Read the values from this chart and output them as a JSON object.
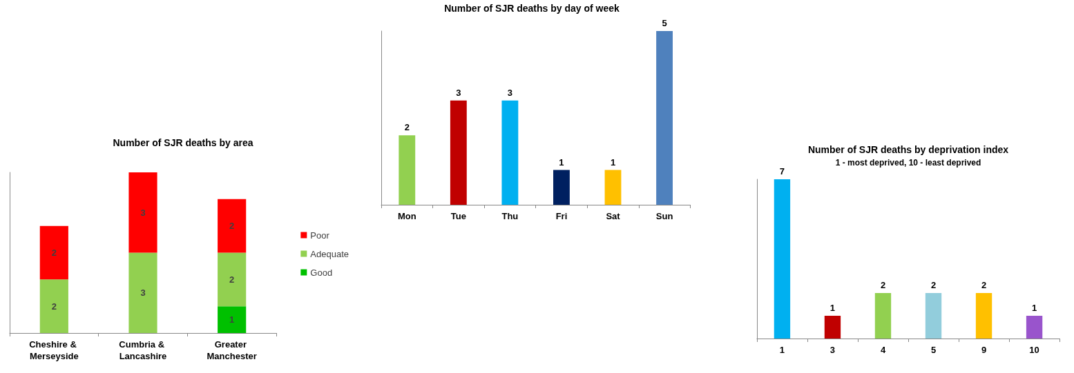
{
  "chart_data": [
    {
      "type": "bar",
      "title": "Number of SJR deaths by area",
      "categories": [
        "Cheshire & Merseyside",
        "Cumbria & Lancashire",
        "Greater Manchester"
      ],
      "stacked": true,
      "data_labels": true,
      "legend": "right",
      "grid": false,
      "series": [
        {
          "name": "Good",
          "color": "#00c000",
          "values": [
            null,
            null,
            1
          ]
        },
        {
          "name": "Adequate",
          "color": "#92d050",
          "values": [
            2,
            3,
            2
          ]
        },
        {
          "name": "Poor",
          "color": "#ff0000",
          "values": [
            2,
            3,
            2
          ]
        }
      ]
    },
    {
      "type": "bar",
      "title": "Number of SJR deaths by day of week",
      "categories": [
        "Mon",
        "Tue",
        "Thu",
        "Fri",
        "Sat",
        "Sun"
      ],
      "values": [
        2,
        3,
        3,
        1,
        1,
        5
      ],
      "colors": [
        "#92d050",
        "#c00000",
        "#00b0f0",
        "#002060",
        "#ffc000",
        "#4f81bd"
      ],
      "data_labels": true,
      "legend": false,
      "grid": false
    },
    {
      "type": "bar",
      "title": "Number of SJR deaths by deprivation index",
      "subtitle": "1 - most deprived, 10 - least deprived",
      "categories": [
        "1",
        "3",
        "4",
        "5",
        "9",
        "10"
      ],
      "values": [
        7,
        1,
        2,
        2,
        2,
        1
      ],
      "colors": [
        "#00b0f0",
        "#c00000",
        "#92d050",
        "#92cddc",
        "#ffc000",
        "#9954cc"
      ],
      "data_labels": true,
      "legend": false,
      "grid": false
    }
  ]
}
